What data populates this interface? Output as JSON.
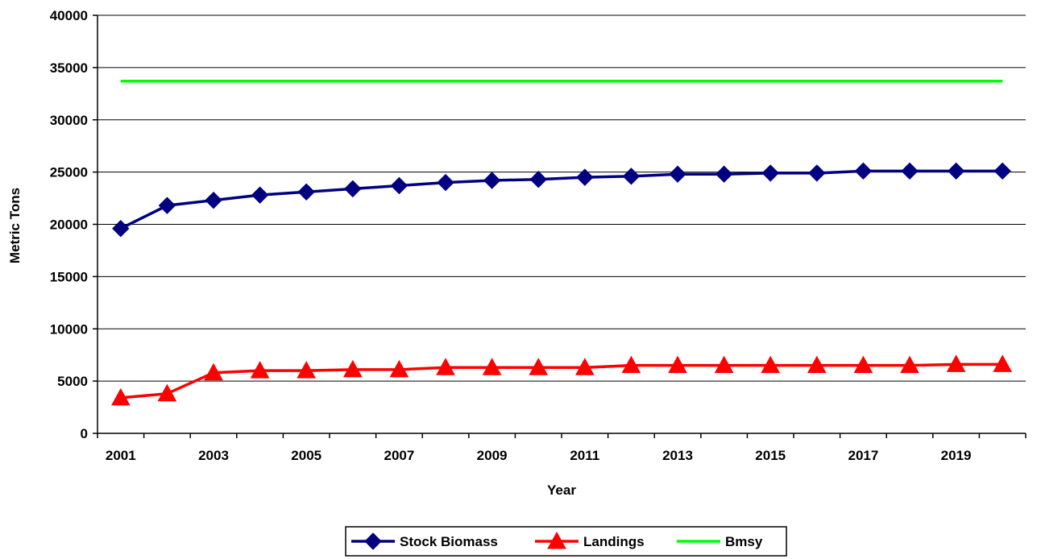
{
  "chart_data": {
    "type": "line",
    "title": "",
    "xlabel": "Year",
    "ylabel": "Metric Tons",
    "ylim": [
      0,
      40000
    ],
    "yticks": [
      "0",
      "5000",
      "10000",
      "15000",
      "20000",
      "25000",
      "30000",
      "35000",
      "40000"
    ],
    "x": [
      2001,
      2002,
      2003,
      2004,
      2005,
      2006,
      2007,
      2008,
      2009,
      2010,
      2011,
      2012,
      2013,
      2014,
      2015,
      2016,
      2017,
      2018,
      2019,
      2020
    ],
    "xtick_labels": [
      "2001",
      "2003",
      "2005",
      "2007",
      "2009",
      "2011",
      "2013",
      "2015",
      "2017",
      "2019"
    ],
    "grid": "horizontal",
    "legend_position": "bottom-center",
    "series": [
      {
        "name": "Stock Biomass",
        "color": "#000080",
        "marker": "diamond",
        "values": [
          19600,
          21800,
          22300,
          22800,
          23100,
          23400,
          23700,
          24000,
          24200,
          24300,
          24500,
          24600,
          24800,
          24800,
          24900,
          24900,
          25100,
          25100,
          25100,
          25100
        ]
      },
      {
        "name": "Landings",
        "color": "#ff0000",
        "marker": "triangle",
        "values": [
          3400,
          3800,
          5800,
          6000,
          6000,
          6100,
          6100,
          6300,
          6300,
          6300,
          6300,
          6500,
          6500,
          6500,
          6500,
          6500,
          6500,
          6500,
          6600,
          6600
        ]
      },
      {
        "name": "Bmsy",
        "color": "#00ff00",
        "marker": "none",
        "values": [
          33700,
          33700,
          33700,
          33700,
          33700,
          33700,
          33700,
          33700,
          33700,
          33700,
          33700,
          33700,
          33700,
          33700,
          33700,
          33700,
          33700,
          33700,
          33700,
          33700
        ]
      }
    ]
  }
}
